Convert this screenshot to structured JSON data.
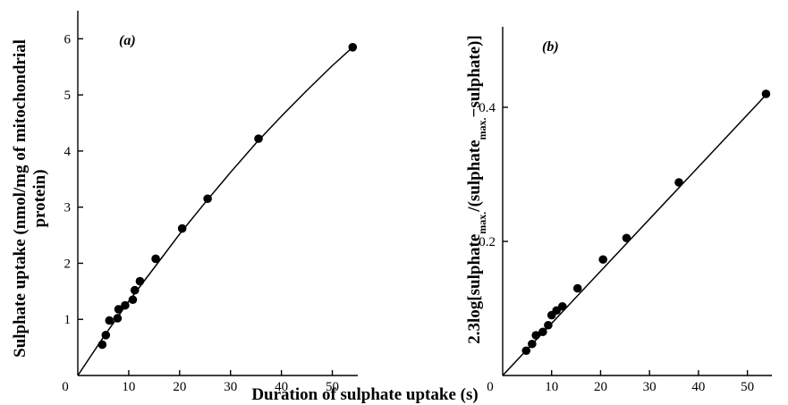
{
  "shared_xlabel": "Duration of sulphate uptake (s)",
  "chart_data": [
    {
      "type": "scatter",
      "panel": "(a)",
      "xlabel": "",
      "ylabel": [
        "Sulphate uptake (nmol/mg of mitochondrial",
        "protein)"
      ],
      "xlim": [
        0,
        55
      ],
      "ylim": [
        0,
        6.5
      ],
      "xticks": [
        0,
        10,
        20,
        30,
        40,
        50
      ],
      "yticks": [
        1,
        2,
        3,
        4,
        5,
        6
      ],
      "points": [
        {
          "x": 4.8,
          "y": 0.55
        },
        {
          "x": 5.5,
          "y": 0.72
        },
        {
          "x": 6.2,
          "y": 0.98
        },
        {
          "x": 7.8,
          "y": 1.02
        },
        {
          "x": 8.0,
          "y": 1.18
        },
        {
          "x": 9.3,
          "y": 1.25
        },
        {
          "x": 10.8,
          "y": 1.35
        },
        {
          "x": 11.2,
          "y": 1.52
        },
        {
          "x": 12.2,
          "y": 1.68
        },
        {
          "x": 15.3,
          "y": 2.08
        },
        {
          "x": 20.5,
          "y": 2.62
        },
        {
          "x": 25.5,
          "y": 3.15
        },
        {
          "x": 35.5,
          "y": 4.22
        },
        {
          "x": 54.0,
          "y": 5.85
        }
      ],
      "curve": [
        {
          "x": 0,
          "y": 0
        },
        {
          "x": 5,
          "y": 0.68
        },
        {
          "x": 10,
          "y": 1.32
        },
        {
          "x": 15,
          "y": 1.92
        },
        {
          "x": 20,
          "y": 2.52
        },
        {
          "x": 25,
          "y": 3.08
        },
        {
          "x": 30,
          "y": 3.62
        },
        {
          "x": 35,
          "y": 4.14
        },
        {
          "x": 40,
          "y": 4.62
        },
        {
          "x": 45,
          "y": 5.08
        },
        {
          "x": 50,
          "y": 5.52
        },
        {
          "x": 54,
          "y": 5.85
        }
      ]
    },
    {
      "type": "scatter",
      "panel": "(b)",
      "xlabel": "",
      "ylabel": [
        "2.3log[sulphate",
        "max.",
        "/(sulphate",
        "max.",
        "−sulphate)]"
      ],
      "xlim": [
        0,
        55
      ],
      "ylim": [
        0,
        0.52
      ],
      "xticks": [
        0,
        10,
        20,
        30,
        40,
        50
      ],
      "yticks": [
        0.2,
        0.4
      ],
      "points": [
        {
          "x": 4.8,
          "y": 0.037
        },
        {
          "x": 6.0,
          "y": 0.047
        },
        {
          "x": 6.8,
          "y": 0.06
        },
        {
          "x": 8.2,
          "y": 0.065
        },
        {
          "x": 9.3,
          "y": 0.075
        },
        {
          "x": 10.0,
          "y": 0.09
        },
        {
          "x": 11.0,
          "y": 0.097
        },
        {
          "x": 12.2,
          "y": 0.103
        },
        {
          "x": 15.3,
          "y": 0.13
        },
        {
          "x": 20.5,
          "y": 0.173
        },
        {
          "x": 25.3,
          "y": 0.205
        },
        {
          "x": 36.0,
          "y": 0.288
        },
        {
          "x": 53.8,
          "y": 0.42
        }
      ],
      "curve": [
        {
          "x": 0,
          "y": 0
        },
        {
          "x": 54,
          "y": 0.42
        }
      ]
    }
  ]
}
